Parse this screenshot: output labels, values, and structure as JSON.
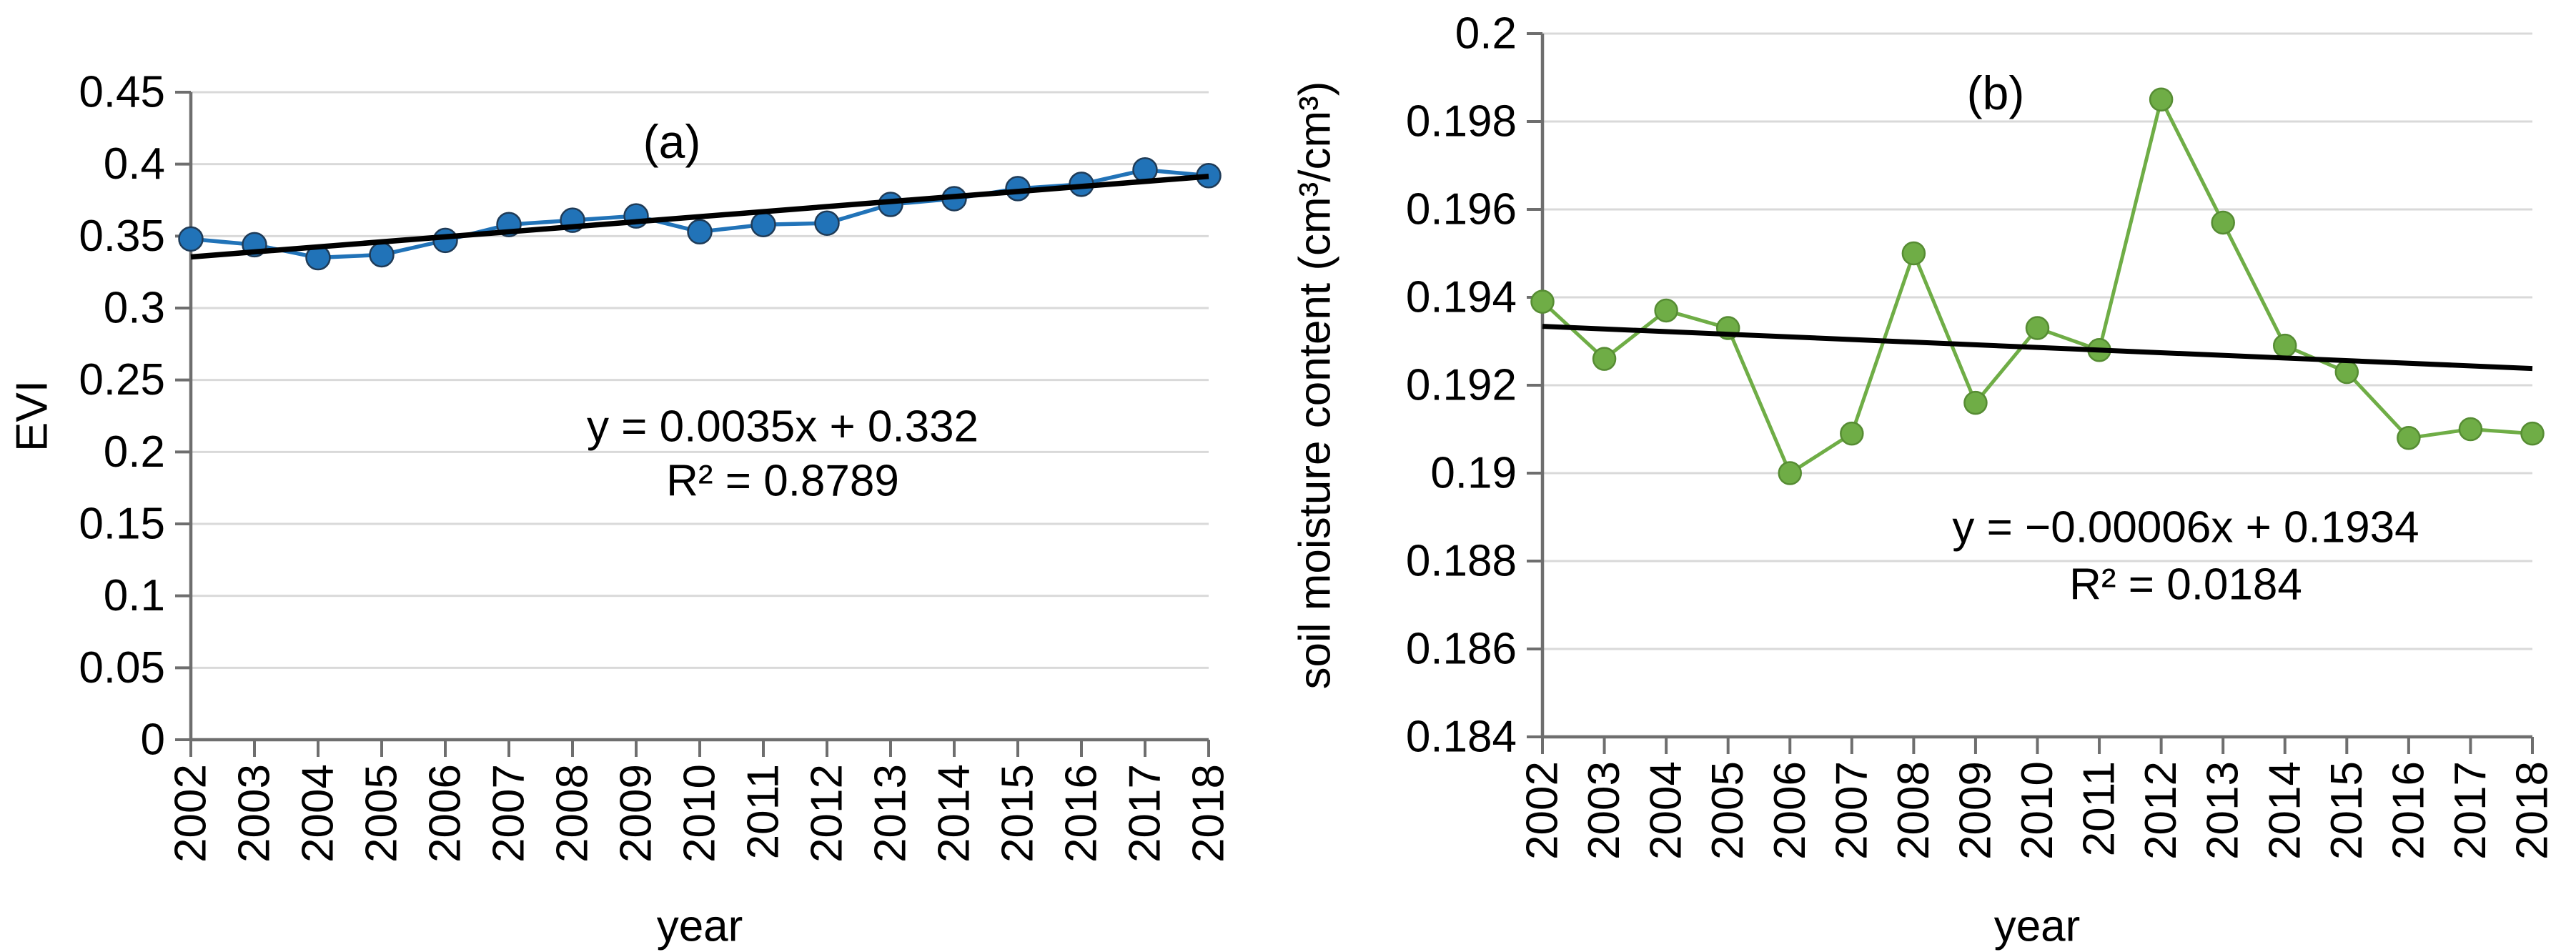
{
  "chart_data": [
    {
      "type": "line",
      "panel_label": "(a)",
      "xlabel": "year",
      "ylabel": "EVI",
      "categories": [
        2002,
        2003,
        2004,
        2005,
        2006,
        2007,
        2008,
        2009,
        2010,
        2011,
        2012,
        2013,
        2014,
        2015,
        2016,
        2017,
        2018
      ],
      "series": [
        {
          "name": "EVI",
          "color": "#2173B8",
          "marker_stroke": "#1F3B57",
          "values": [
            0.348,
            0.344,
            0.335,
            0.337,
            0.347,
            0.358,
            0.361,
            0.364,
            0.353,
            0.358,
            0.359,
            0.372,
            0.376,
            0.383,
            0.386,
            0.396,
            0.392
          ]
        }
      ],
      "trendline": {
        "equation": "y = 0.0035x + 0.332",
        "r_squared_label": "R² = 0.8789",
        "slope": 0.0035,
        "intercept": 0.332,
        "color": "#000000"
      },
      "ylim": [
        0,
        0.45
      ],
      "ytick_step": 0.05,
      "ytick_labels": [
        "0",
        "0.05",
        "0.1",
        "0.15",
        "0.2",
        "0.25",
        "0.3",
        "0.35",
        "0.4",
        "0.45"
      ],
      "grid": true,
      "legend_position": "none"
    },
    {
      "type": "line",
      "panel_label": "(b)",
      "xlabel": "year",
      "ylabel": "soil moisture content (cm³/cm³)",
      "categories": [
        2002,
        2003,
        2004,
        2005,
        2006,
        2007,
        2008,
        2009,
        2010,
        2011,
        2012,
        2013,
        2014,
        2015,
        2016,
        2017,
        2018
      ],
      "series": [
        {
          "name": "soil moisture content",
          "color": "#6FAD46",
          "marker_stroke": "#568C33",
          "values": [
            0.1939,
            0.1926,
            0.1937,
            0.1933,
            0.19,
            0.1909,
            0.195,
            0.1916,
            0.1933,
            0.1928,
            0.1985,
            0.1957,
            0.1929,
            0.1923,
            0.1908,
            0.191,
            0.1909
          ]
        }
      ],
      "trendline": {
        "equation": "y = −0.00006x + 0.1934",
        "r_squared_label": "R² = 0.0184",
        "slope": -6e-05,
        "intercept": 0.1934,
        "color": "#000000"
      },
      "ylim": [
        0.184,
        0.2
      ],
      "ytick_step": 0.002,
      "ytick_labels": [
        "0.184",
        "0.186",
        "0.188",
        "0.19",
        "0.192",
        "0.194",
        "0.196",
        "0.198",
        "0.2"
      ],
      "grid": true,
      "legend_position": "none"
    }
  ],
  "style": {
    "gridline_color": "#D9D9D9",
    "axis_color": "#6E6E6E",
    "text_color": "#000000",
    "background": "#ffffff"
  }
}
